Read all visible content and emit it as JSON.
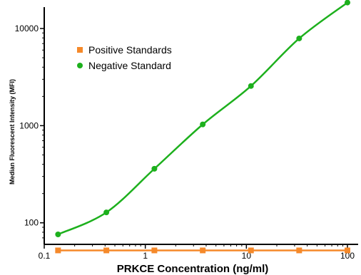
{
  "chart_data": {
    "type": "line",
    "xlabel": "PRKCE Concentration (ng/ml)",
    "ylabel": "Median Fluorescent Intensity (MFI)",
    "x_scale": "log",
    "y_scale": "log",
    "xlim": [
      0.1,
      100
    ],
    "ylim": [
      60,
      15000
    ],
    "x_ticks": [
      0.1,
      1,
      10,
      100
    ],
    "x_tick_labels": [
      "0.1",
      "1",
      "10",
      "100"
    ],
    "y_ticks": [
      100,
      1000,
      10000
    ],
    "y_tick_labels": [
      "100",
      "1000",
      "10000"
    ],
    "grid": false,
    "legend_position": "top-left",
    "series": [
      {
        "name": "Positive Standards",
        "color": "#f5892a",
        "marker": "square",
        "x": [
          0.137,
          0.412,
          1.23,
          3.7,
          11.1,
          33.3,
          100
        ],
        "y": [
          52,
          52,
          52,
          52,
          52,
          52,
          52
        ]
      },
      {
        "name": "Negative Standard",
        "color": "#1db01d",
        "marker": "circle",
        "x": [
          0.137,
          0.412,
          1.23,
          3.7,
          11.1,
          33.3,
          100
        ],
        "y": [
          76,
          128,
          360,
          1030,
          2560,
          7900,
          18500
        ]
      }
    ]
  }
}
